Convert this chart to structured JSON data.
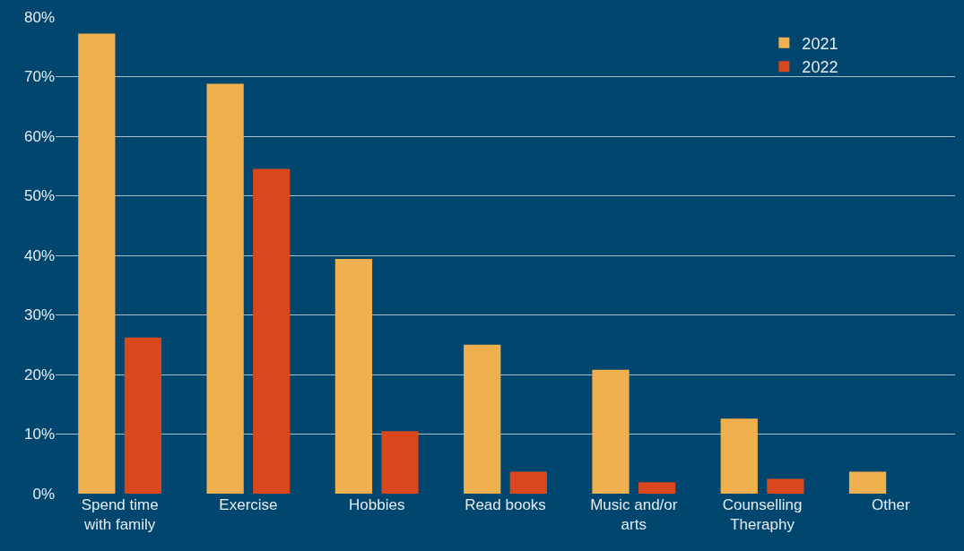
{
  "chart_data": {
    "type": "bar",
    "categories": [
      "Spend time with family",
      "Exercise",
      "Hobbies",
      "Read books",
      "Music and/or arts",
      "Counselling Theraphy",
      "Other"
    ],
    "series": [
      {
        "name": "2021",
        "color": "#f0b04e",
        "values": [
          77.2,
          68.8,
          39.4,
          25.0,
          20.8,
          12.6,
          3.7
        ]
      },
      {
        "name": "2022",
        "color": "#d9471c",
        "values": [
          26.2,
          54.5,
          10.5,
          3.7,
          1.9,
          2.5,
          null
        ]
      }
    ],
    "ylim": [
      0,
      80
    ],
    "yticks": [
      {
        "value": 0,
        "label": "0%"
      },
      {
        "value": 10,
        "label": "10%"
      },
      {
        "value": 20,
        "label": "20%"
      },
      {
        "value": 30,
        "label": "30%"
      },
      {
        "value": 40,
        "label": "40%"
      },
      {
        "value": 50,
        "label": "50%"
      },
      {
        "value": 60,
        "label": "60%"
      },
      {
        "value": 70,
        "label": "70%"
      },
      {
        "value": 80,
        "label": "80%"
      }
    ],
    "grid": "y",
    "legend": "top right"
  }
}
